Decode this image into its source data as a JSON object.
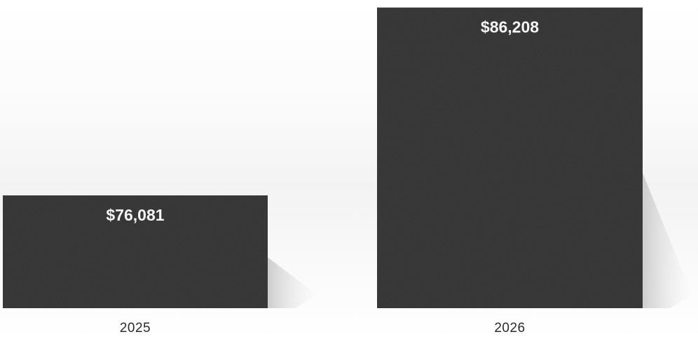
{
  "chart_data": {
    "type": "bar",
    "categories": [
      "2025",
      "2026"
    ],
    "values": [
      76081,
      86208
    ],
    "value_labels": [
      "$76,081",
      "$86,208"
    ],
    "title": "",
    "xlabel": "",
    "ylabel": "",
    "ylim": [
      70000,
      86500
    ],
    "grid": false,
    "legend": "none",
    "bar_color": "#3a3a3a"
  }
}
